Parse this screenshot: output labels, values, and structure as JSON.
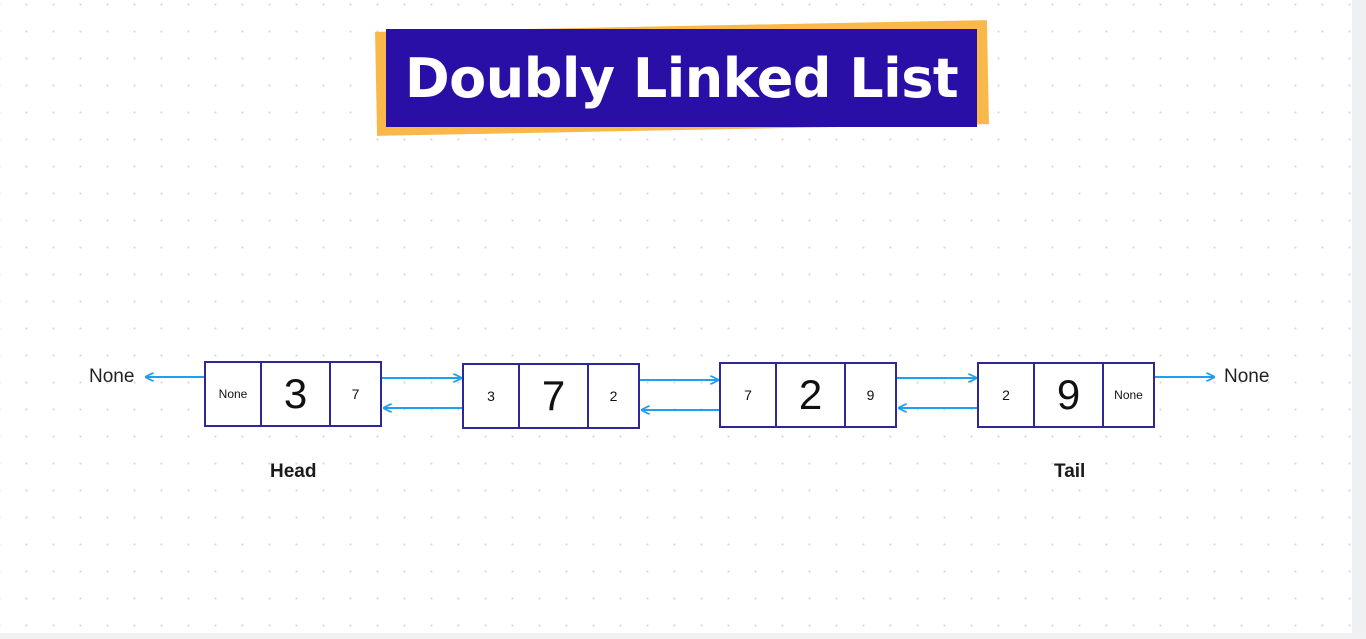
{
  "title": "Doubly Linked List",
  "nodes": [
    {
      "prev": "None",
      "data": "3",
      "next": "7"
    },
    {
      "prev": "3",
      "data": "7",
      "next": "2"
    },
    {
      "prev": "7",
      "data": "2",
      "next": "9"
    },
    {
      "prev": "2",
      "data": "9",
      "next": "None"
    }
  ],
  "ends": {
    "left": "None",
    "right": "None"
  },
  "captions": {
    "head": "Head",
    "tail": "Tail"
  },
  "colors": {
    "title_background": "#2a0fa6",
    "title_accent": "#f9b94a",
    "node_border": "#2e2896",
    "arrow": "#1e9ff2"
  }
}
